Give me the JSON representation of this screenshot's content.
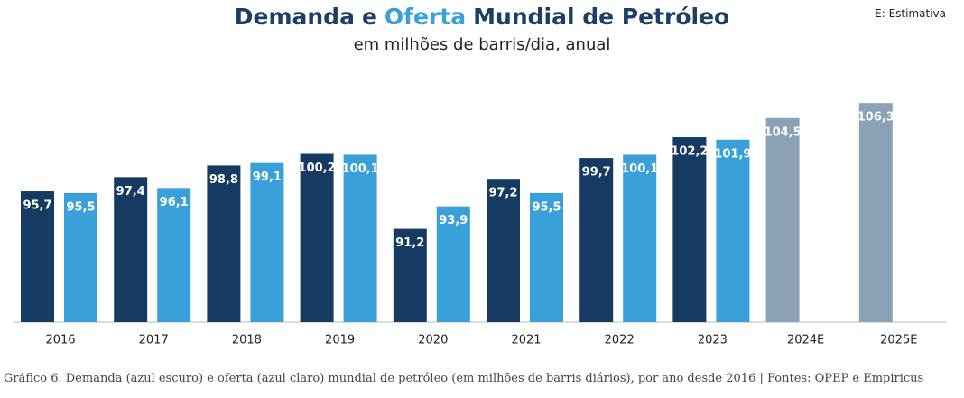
{
  "chart_data": {
    "type": "bar",
    "title_parts": [
      {
        "text": "Demanda",
        "color": "#1d3f66"
      },
      {
        "text": "e",
        "color": "#1d3f66"
      },
      {
        "text": "Oferta",
        "color": "#3aa0da"
      },
      {
        "text": "Mundial de Petróleo",
        "color": "#1d3f66"
      }
    ],
    "subtitle": "em milhões de barris/dia, anual",
    "note": "E: Estimativa",
    "caption": "Gráfico 6. Demanda (azul escuro) e oferta (azul claro) mundial de petróleo (em milhões de barris diários), por ano desde 2016 | Fontes: OPEP e Empiricus",
    "categories": [
      "2016",
      "2017",
      "2018",
      "2019",
      "2020",
      "2021",
      "2022",
      "2023",
      "2024E",
      "2025E"
    ],
    "ylim": [
      80,
      110
    ],
    "series": [
      {
        "name": "Demanda",
        "color": "#163a62",
        "colors": [
          "#163a62",
          "#163a62",
          "#163a62",
          "#163a62",
          "#163a62",
          "#163a62",
          "#163a62",
          "#163a62",
          "#8ba1b6",
          "#8ba1b6"
        ],
        "values": [
          95.7,
          97.4,
          98.8,
          100.2,
          91.2,
          97.2,
          99.7,
          102.2,
          104.5,
          106.3
        ],
        "value_labels": [
          "95,7",
          "97,4",
          "98,8",
          "100,2",
          "91,2",
          "97,2",
          "99,7",
          "102,2",
          "104,5",
          "106,3"
        ]
      },
      {
        "name": "Oferta",
        "color": "#3aa0da",
        "values": [
          95.5,
          96.1,
          99.1,
          100.1,
          93.9,
          95.5,
          100.1,
          101.9,
          null,
          null
        ],
        "value_labels": [
          "95,5",
          "96,1",
          "99,1",
          "100,1",
          "93,9",
          "95,5",
          "100,1",
          "101,9",
          null,
          null
        ]
      }
    ]
  }
}
